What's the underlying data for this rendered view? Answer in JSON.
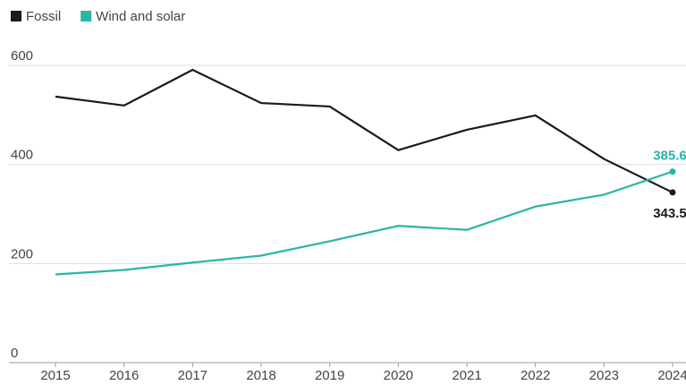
{
  "chart_data": {
    "type": "line",
    "categories": [
      "2015",
      "2016",
      "2017",
      "2018",
      "2019",
      "2020",
      "2021",
      "2022",
      "2023",
      "2024"
    ],
    "series": [
      {
        "name": "Fossil",
        "color": "#1a1a1a",
        "values": [
          537,
          519,
          591,
          524,
          517,
          429,
          470,
          499,
          411,
          343.5
        ]
      },
      {
        "name": "Wind and solar",
        "color": "#2ab5a5",
        "values": [
          178,
          187,
          202,
          216,
          245,
          276,
          268,
          315,
          339,
          385.6
        ]
      }
    ],
    "ylim": [
      0,
      600
    ],
    "yticks": [
      0,
      200,
      400,
      600
    ],
    "grid": true,
    "legend": "top-left"
  }
}
